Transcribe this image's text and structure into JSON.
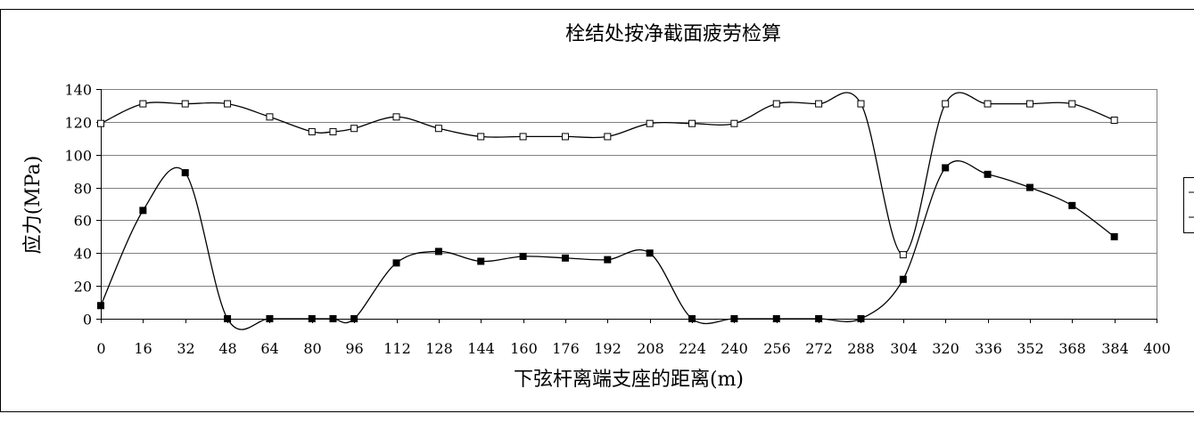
{
  "chart_data": {
    "type": "line",
    "title": "栓结处按净截面疲劳检算",
    "xlabel": "下弦杆离端支座的距离(m)",
    "ylabel": "应力(MPa)",
    "xlim": [
      0,
      400
    ],
    "ylim": [
      0,
      140
    ],
    "xticks": [
      0,
      16,
      32,
      48,
      64,
      80,
      96,
      112,
      128,
      144,
      160,
      176,
      192,
      208,
      224,
      240,
      256,
      272,
      288,
      304,
      320,
      336,
      352,
      368,
      384,
      400
    ],
    "yticks": [
      0,
      20,
      40,
      60,
      80,
      100,
      120,
      140
    ],
    "grid": "horizontal",
    "legend": "right (clipped)",
    "series": [
      {
        "marker": "open-square",
        "color": "#000000",
        "points": [
          {
            "x": 0,
            "y": 119
          },
          {
            "x": 16,
            "y": 131
          },
          {
            "x": 32,
            "y": 131
          },
          {
            "x": 48,
            "y": 131
          },
          {
            "x": 64,
            "y": 123
          },
          {
            "x": 80,
            "y": 114
          },
          {
            "x": 88,
            "y": 114
          },
          {
            "x": 96,
            "y": 116
          },
          {
            "x": 112,
            "y": 123
          },
          {
            "x": 128,
            "y": 116
          },
          {
            "x": 144,
            "y": 111
          },
          {
            "x": 160,
            "y": 111
          },
          {
            "x": 176,
            "y": 111
          },
          {
            "x": 192,
            "y": 111
          },
          {
            "x": 208,
            "y": 119
          },
          {
            "x": 224,
            "y": 119
          },
          {
            "x": 240,
            "y": 119
          },
          {
            "x": 256,
            "y": 131
          },
          {
            "x": 272,
            "y": 131
          },
          {
            "x": 288,
            "y": 131
          },
          {
            "x": 304,
            "y": 39
          },
          {
            "x": 320,
            "y": 131
          },
          {
            "x": 336,
            "y": 131
          },
          {
            "x": 352,
            "y": 131
          },
          {
            "x": 368,
            "y": 131
          },
          {
            "x": 384,
            "y": 121
          }
        ]
      },
      {
        "marker": "filled-square",
        "color": "#000000",
        "points": [
          {
            "x": 0,
            "y": 8
          },
          {
            "x": 16,
            "y": 66
          },
          {
            "x": 32,
            "y": 89
          },
          {
            "x": 48,
            "y": 0
          },
          {
            "x": 64,
            "y": 0
          },
          {
            "x": 80,
            "y": 0
          },
          {
            "x": 88,
            "y": 0
          },
          {
            "x": 96,
            "y": 0
          },
          {
            "x": 112,
            "y": 34
          },
          {
            "x": 128,
            "y": 41
          },
          {
            "x": 144,
            "y": 35
          },
          {
            "x": 160,
            "y": 38
          },
          {
            "x": 176,
            "y": 37
          },
          {
            "x": 192,
            "y": 36
          },
          {
            "x": 208,
            "y": 40
          },
          {
            "x": 224,
            "y": 0
          },
          {
            "x": 240,
            "y": 0
          },
          {
            "x": 256,
            "y": 0
          },
          {
            "x": 272,
            "y": 0
          },
          {
            "x": 288,
            "y": 0
          },
          {
            "x": 304,
            "y": 24
          },
          {
            "x": 320,
            "y": 92
          },
          {
            "x": 336,
            "y": 88
          },
          {
            "x": 352,
            "y": 80
          },
          {
            "x": 368,
            "y": 69
          },
          {
            "x": 384,
            "y": 50
          }
        ]
      }
    ]
  }
}
